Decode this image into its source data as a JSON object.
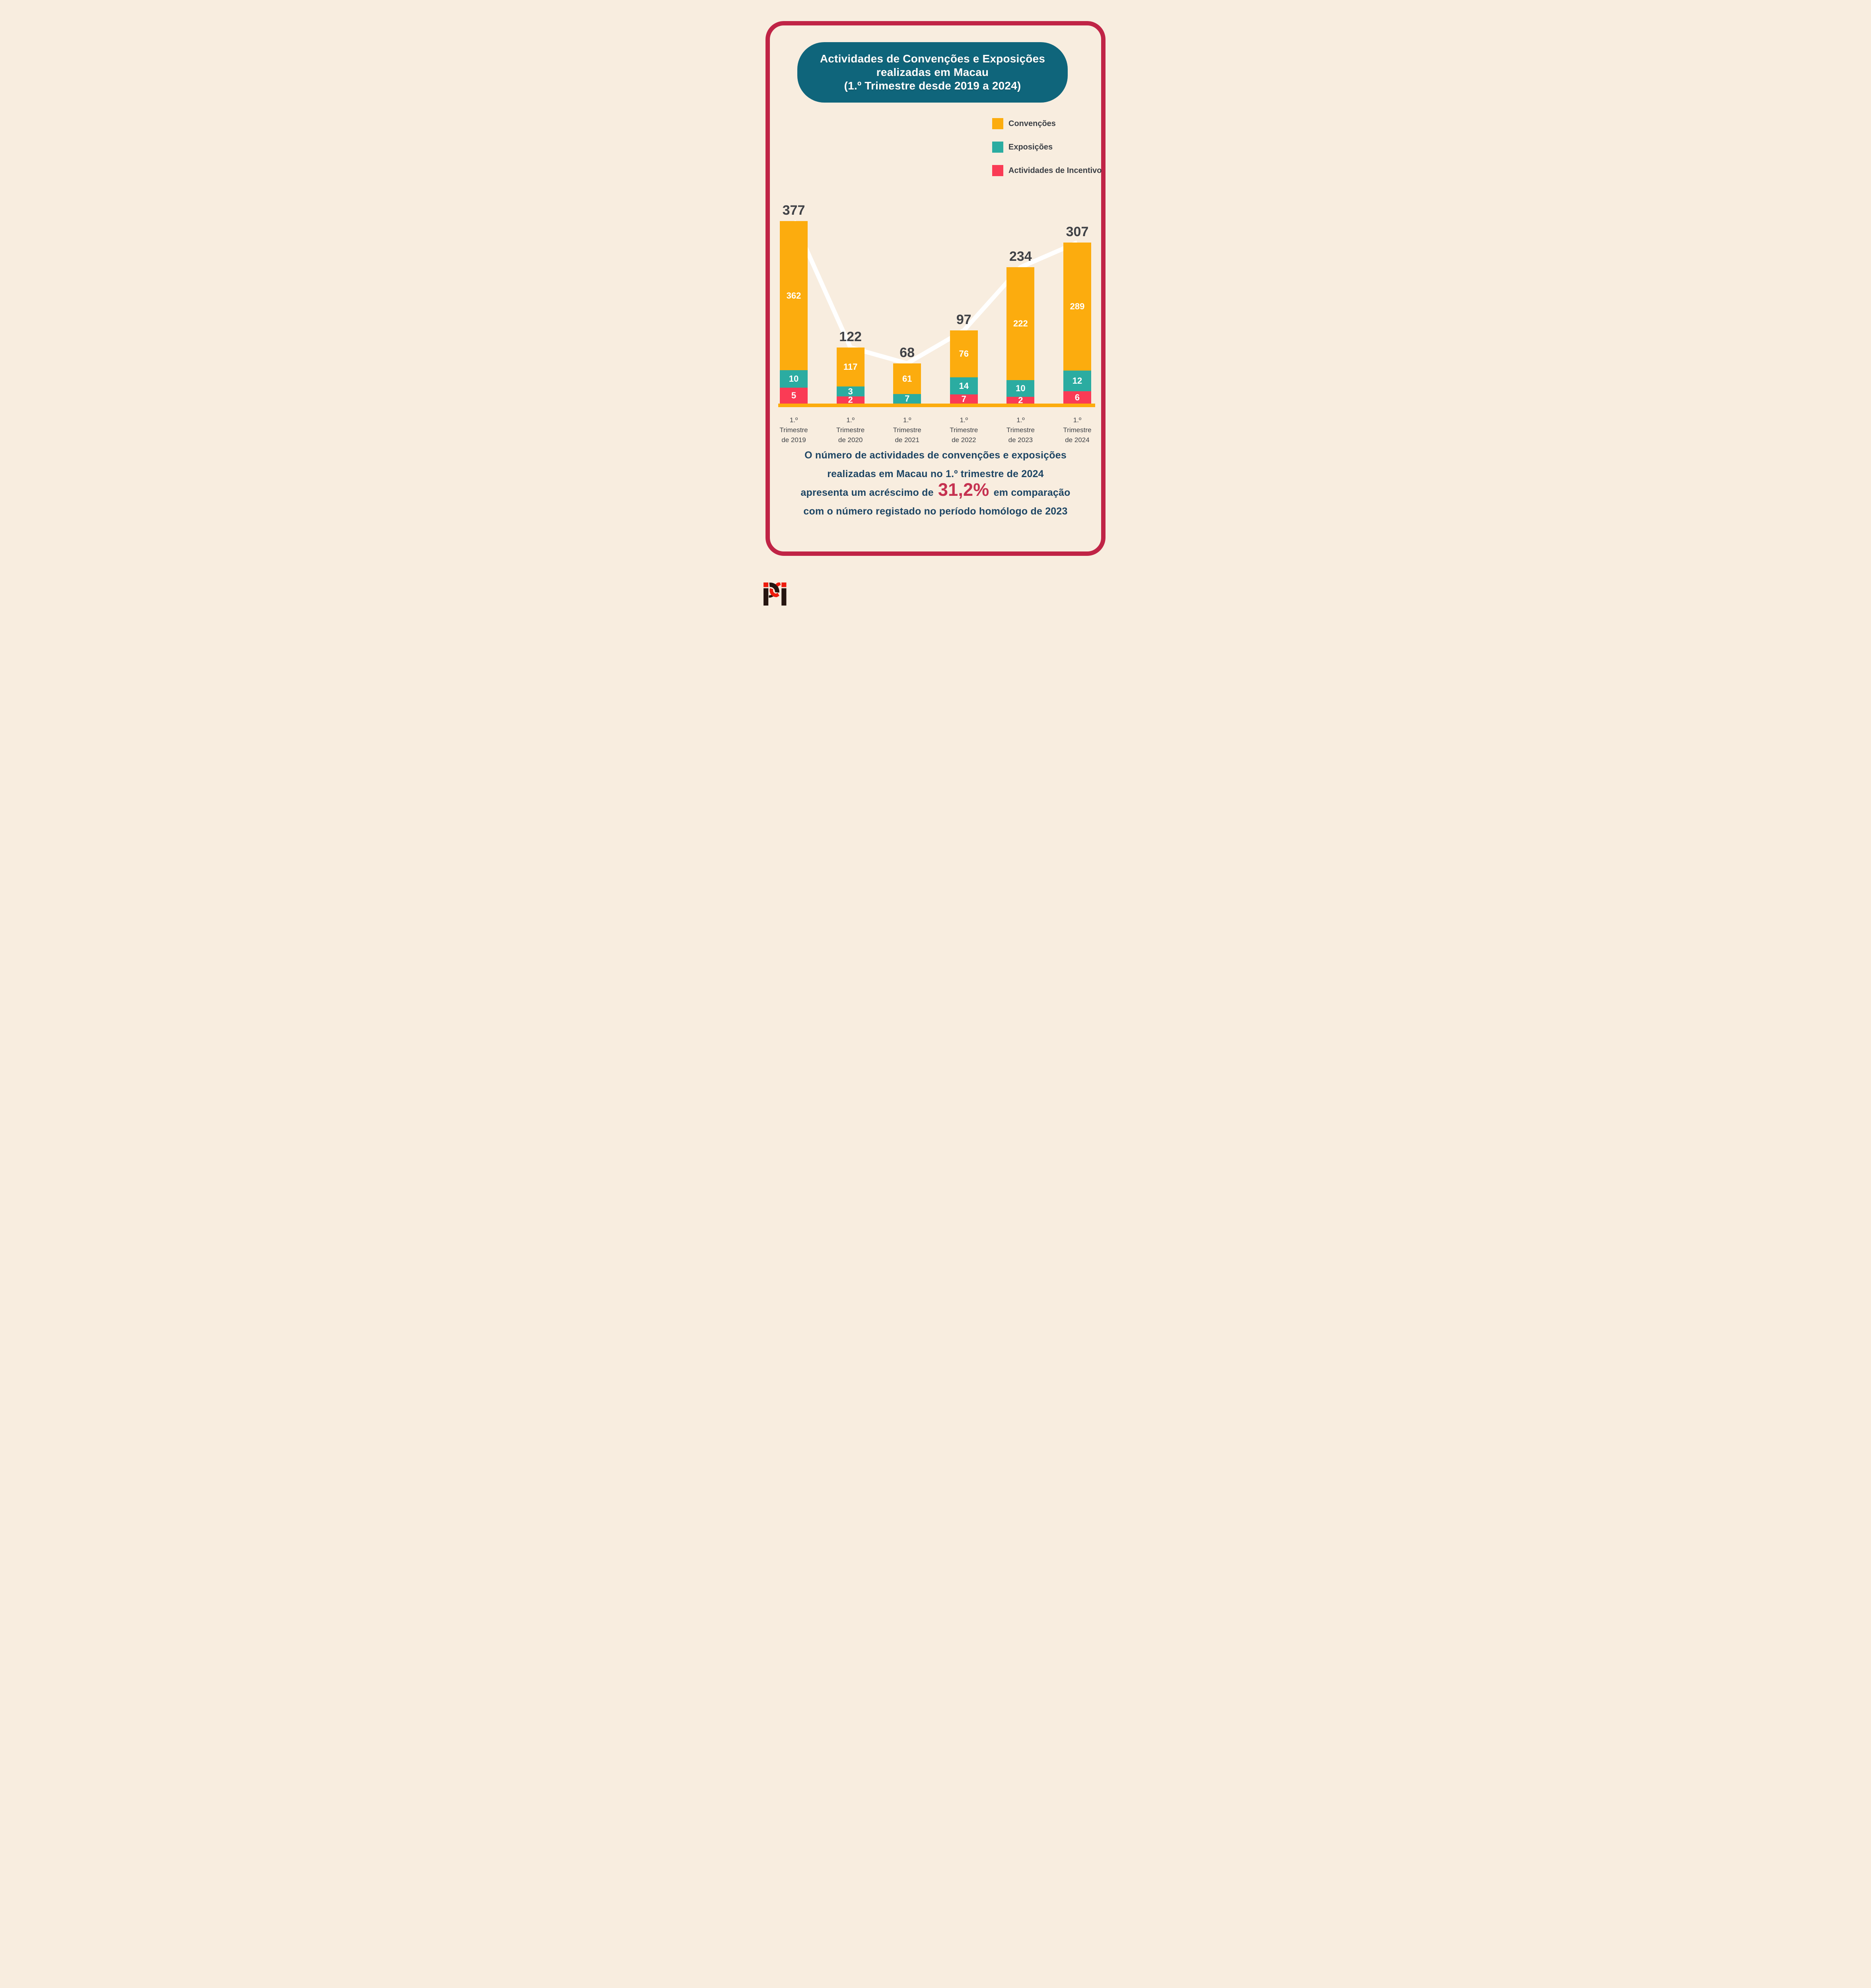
{
  "title": {
    "lines": [
      "Actividades de Convenções e Exposições",
      "realizadas em Macau",
      "(1.º Trimestre desde 2019 a 2024)"
    ]
  },
  "legend": {
    "items": [
      {
        "label": "Convenções",
        "color": "#FCAC0E"
      },
      {
        "label": "Exposições",
        "color": "#2BACA1"
      },
      {
        "label": "Actividades de Incentivo",
        "color": "#FA3B55"
      }
    ]
  },
  "chart_data": {
    "type": "bar",
    "stacked": true,
    "title": "Actividades de Convenções e Exposições realizadas em Macau (1.º Trimestre desde 2019 a 2024)",
    "categories": [
      [
        "1.º",
        "Trimestre",
        "de 2019"
      ],
      [
        "1.º",
        "Trimestre",
        "de 2020"
      ],
      [
        "1.º",
        "Trimestre",
        "de 2021"
      ],
      [
        "1.º",
        "Trimestre",
        "de 2022"
      ],
      [
        "1.º",
        "Trimestre",
        "de 2023"
      ],
      [
        "1.º",
        "Trimestre",
        "de 2024"
      ]
    ],
    "series": [
      {
        "name": "Convenções",
        "color": "#FCAC0E",
        "values": [
          362,
          117,
          61,
          76,
          222,
          289
        ]
      },
      {
        "name": "Exposições",
        "color": "#2BACA1",
        "values": [
          10,
          3,
          7,
          14,
          10,
          12
        ]
      },
      {
        "name": "Actividades de Incentivo",
        "color": "#FA3B55",
        "values": [
          5,
          2,
          0,
          7,
          2,
          6
        ]
      }
    ],
    "totals": [
      377,
      122,
      68,
      97,
      234,
      307
    ],
    "ylim": [
      0,
      400
    ],
    "grid": false,
    "legend_position": "top-right",
    "trend_line": "thick white line through stacked-bar tops, drawn behind bars",
    "bars_layout": [
      {
        "total": "377",
        "segments": [
          {
            "series": 2,
            "label": "5",
            "px": 40
          },
          {
            "series": 1,
            "label": "10",
            "px": 44
          },
          {
            "series": 0,
            "label": "362",
            "px": 375
          }
        ]
      },
      {
        "total": "122",
        "segments": [
          {
            "series": 2,
            "label": "2",
            "px": 18
          },
          {
            "series": 1,
            "label": "3",
            "px": 25
          },
          {
            "series": 0,
            "label": "117",
            "px": 98
          }
        ]
      },
      {
        "total": "68",
        "segments": [
          {
            "series": 1,
            "label": "7",
            "px": 24
          },
          {
            "series": 0,
            "label": "61",
            "px": 77
          }
        ]
      },
      {
        "total": "97",
        "segments": [
          {
            "series": 2,
            "label": "7",
            "px": 23
          },
          {
            "series": 1,
            "label": "14",
            "px": 43
          },
          {
            "series": 0,
            "label": "76",
            "px": 118
          }
        ]
      },
      {
        "total": "234",
        "segments": [
          {
            "series": 2,
            "label": "2",
            "px": 17
          },
          {
            "series": 1,
            "label": "10",
            "px": 42
          },
          {
            "series": 0,
            "label": "222",
            "px": 284
          }
        ]
      },
      {
        "total": "307",
        "segments": [
          {
            "series": 2,
            "label": "6",
            "px": 31
          },
          {
            "series": 1,
            "label": "12",
            "px": 52
          },
          {
            "series": 0,
            "label": "289",
            "px": 322
          }
        ]
      }
    ]
  },
  "summary": {
    "line1": "O número de actividades de convenções e exposições",
    "line2": "realizadas em Macau no 1.º trimestre de 2024",
    "line3_prefix": "apresenta um acréscimo de",
    "line3_highlight": "31,2%",
    "line3_suffix": "em comparação",
    "line4": "com o número registado no período homólogo de 2023"
  },
  "colors": {
    "background": "#F8EDDF",
    "card_border": "#C02446",
    "title_bg": "#0F657B",
    "title_text": "#FFFFFF",
    "conventions": "#FCAC0E",
    "exhibitions": "#2BACA1",
    "incentives": "#FA3B55",
    "total_label": "#3F4146",
    "axis_label": "#3E4146",
    "axis_line": "#FCAC0E",
    "trend_line": "#FFFFFF",
    "summary_text": "#1D4564",
    "highlight_text": "#C53150",
    "logo_black": "#251510",
    "logo_red": "#ED1B0C"
  }
}
